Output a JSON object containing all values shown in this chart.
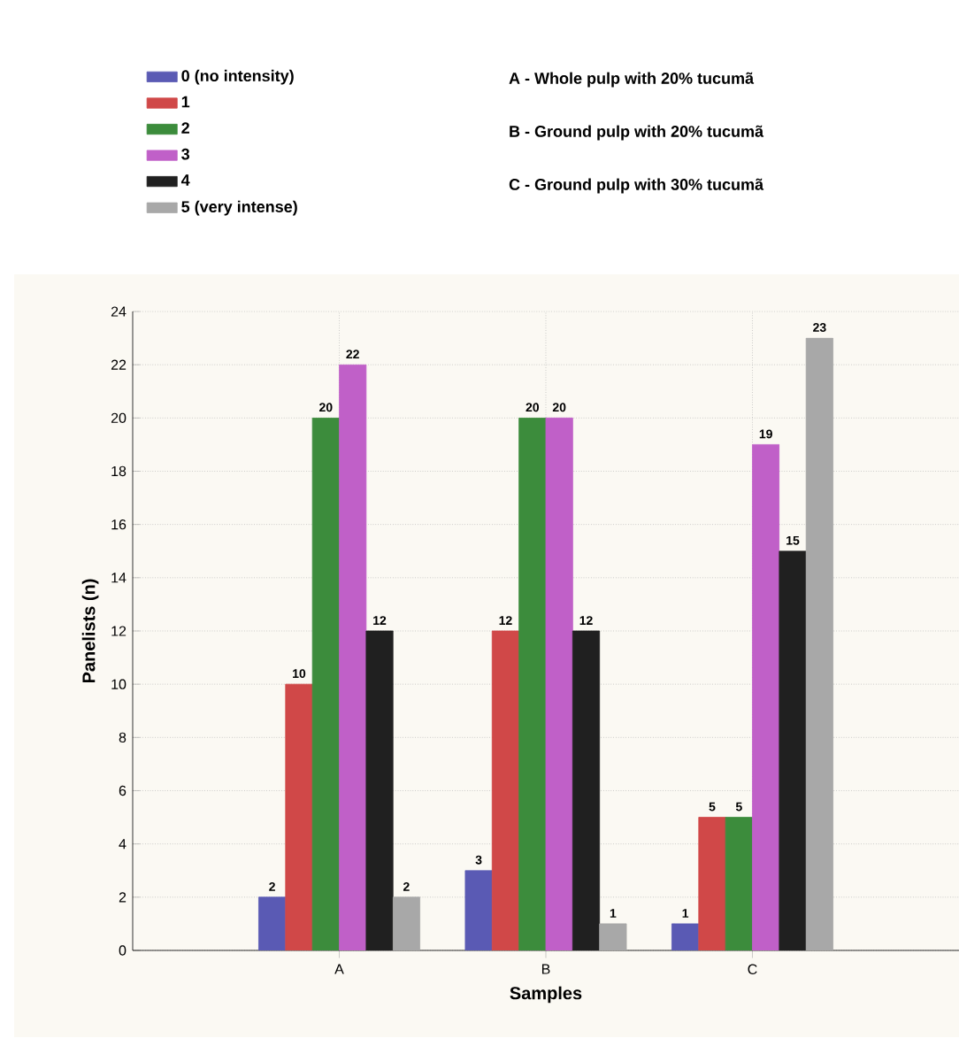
{
  "chart_data": {
    "type": "bar",
    "xlabel": "Samples",
    "ylabel": "Panelists (n)",
    "categories": [
      "A",
      "B",
      "C"
    ],
    "series": [
      {
        "name": "0 (no intensity)",
        "color": "#5a5ab4",
        "values": [
          2,
          3,
          1
        ]
      },
      {
        "name": "1",
        "color": "#d04848",
        "values": [
          10,
          12,
          5
        ]
      },
      {
        "name": "2",
        "color": "#3c8c3c",
        "values": [
          20,
          20,
          5
        ]
      },
      {
        "name": "3",
        "color": "#c060c8",
        "values": [
          22,
          20,
          19
        ]
      },
      {
        "name": "4",
        "color": "#202020",
        "values": [
          12,
          12,
          15
        ]
      },
      {
        "name": "5 (very intense)",
        "color": "#a8a8a8",
        "values": [
          2,
          1,
          23
        ]
      }
    ],
    "ylim": [
      0,
      24
    ],
    "yticks": [
      0,
      2,
      4,
      6,
      8,
      10,
      12,
      14,
      16,
      18,
      20,
      22,
      24
    ],
    "grid": true,
    "legend": "top left",
    "data_labels": true,
    "annotations": [
      "A - Whole pulp with 20% tucumã",
      "B - Ground pulp with 20% tucumã",
      "C - Ground pulp with 30% tucumã"
    ]
  }
}
